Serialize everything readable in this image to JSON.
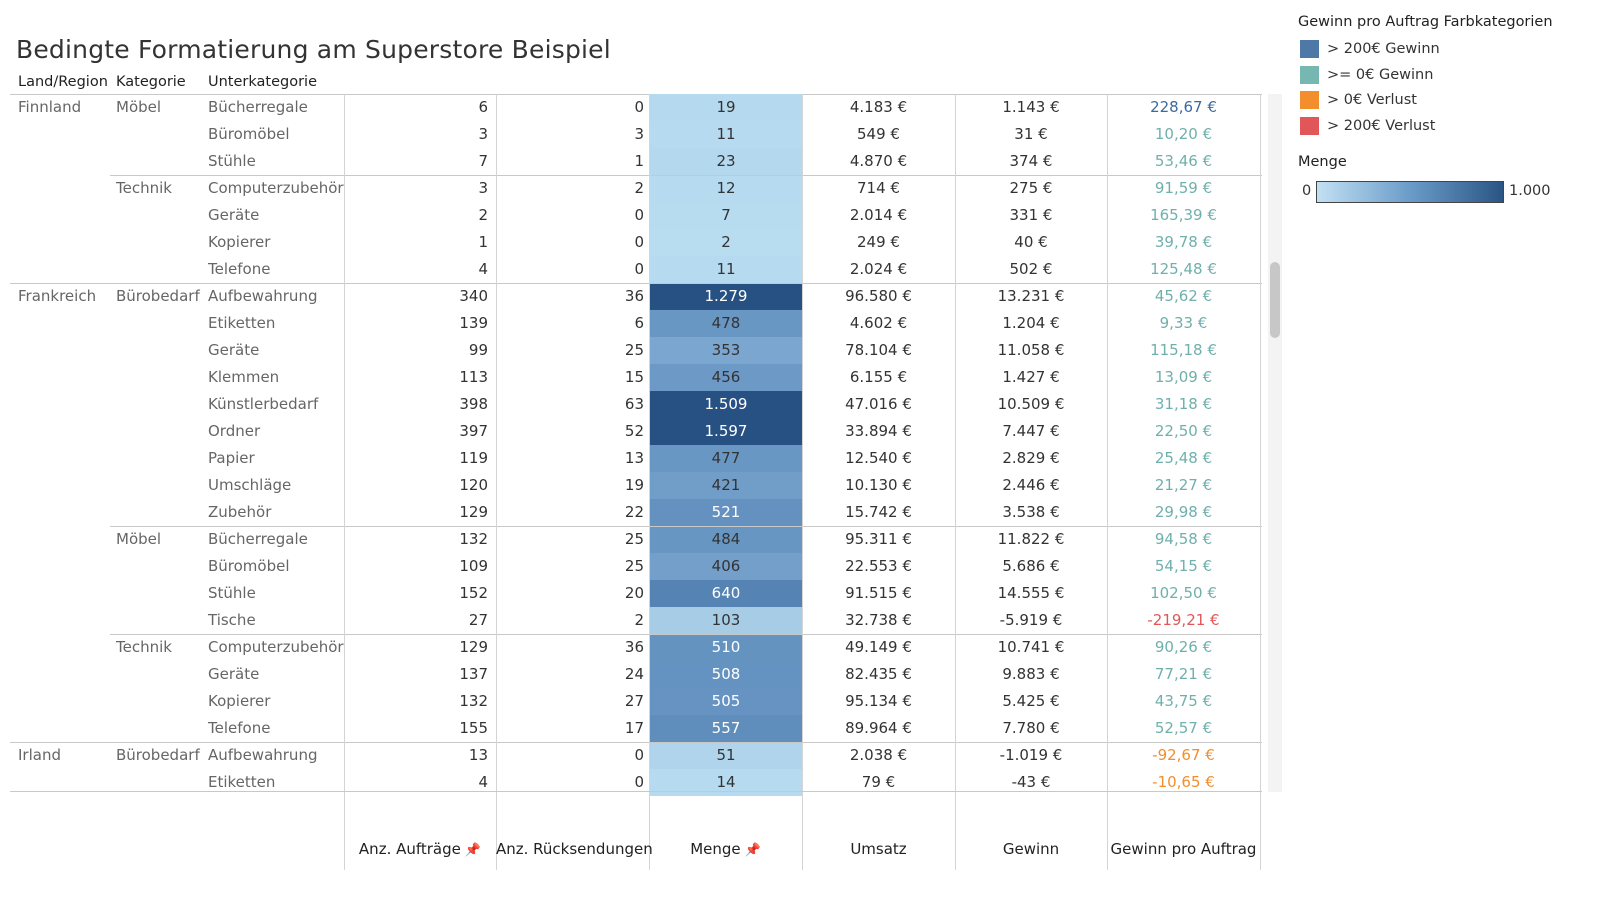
{
  "title": "Bedingte Formatierung am Superstore Beispiel",
  "row_headers": [
    "Land/Region",
    "Kategorie",
    "Unterkategorie"
  ],
  "column_footers": [
    "Anz. Aufträge",
    "Anz. Rücksendungen",
    "Menge",
    "Umsatz",
    "Gewinn",
    "Gewinn pro Auftrag"
  ],
  "colors": {
    "profit_high": "#4e79a7",
    "profit_pos": "#76b7b2",
    "loss_low": "#f28e2b",
    "loss_high": "#e15759",
    "text_high": "#3b6a9e",
    "text_pos": "#6fb0ac",
    "text_loss_low": "#f28e2b",
    "text_loss_high": "#e15759"
  },
  "legend": {
    "title": "Gewinn pro Auftrag Farbkategorien",
    "items": [
      {
        "label": "> 200€ Gewinn",
        "color": "#4e79a7"
      },
      {
        "label": ">= 0€ Gewinn",
        "color": "#76b7b2"
      },
      {
        "label": "> 0€ Verlust",
        "color": "#f28e2b"
      },
      {
        "label": "> 200€ Verlust",
        "color": "#e15759"
      }
    ],
    "menge_title": "Menge",
    "menge_min": "0",
    "menge_max": "1.000"
  },
  "groups": [
    {
      "region": "Finnland",
      "categories": [
        {
          "name": "Möbel",
          "rows": [
            {
              "sub": "Bücherregale",
              "orders": "6",
              "returns": "0",
              "qty": 19,
              "qty_label": "19",
              "sales": "4.183 €",
              "profit": "1.143 €",
              "ppo": "228,67 €",
              "cls": "high"
            },
            {
              "sub": "Büromöbel",
              "orders": "3",
              "returns": "3",
              "qty": 11,
              "qty_label": "11",
              "sales": "549 €",
              "profit": "31 €",
              "ppo": "10,20 €",
              "cls": "pos"
            },
            {
              "sub": "Stühle",
              "orders": "7",
              "returns": "1",
              "qty": 23,
              "qty_label": "23",
              "sales": "4.870 €",
              "profit": "374 €",
              "ppo": "53,46 €",
              "cls": "pos"
            }
          ]
        },
        {
          "name": "Technik",
          "rows": [
            {
              "sub": "Computerzubehör",
              "orders": "3",
              "returns": "2",
              "qty": 12,
              "qty_label": "12",
              "sales": "714 €",
              "profit": "275 €",
              "ppo": "91,59 €",
              "cls": "pos"
            },
            {
              "sub": "Geräte",
              "orders": "2",
              "returns": "0",
              "qty": 7,
              "qty_label": "7",
              "sales": "2.014 €",
              "profit": "331 €",
              "ppo": "165,39 €",
              "cls": "pos"
            },
            {
              "sub": "Kopierer",
              "orders": "1",
              "returns": "0",
              "qty": 2,
              "qty_label": "2",
              "sales": "249 €",
              "profit": "40 €",
              "ppo": "39,78 €",
              "cls": "pos"
            },
            {
              "sub": "Telefone",
              "orders": "4",
              "returns": "0",
              "qty": 11,
              "qty_label": "11",
              "sales": "2.024 €",
              "profit": "502 €",
              "ppo": "125,48 €",
              "cls": "pos"
            }
          ]
        }
      ]
    },
    {
      "region": "Frankreich",
      "categories": [
        {
          "name": "Bürobedarf",
          "rows": [
            {
              "sub": "Aufbewahrung",
              "orders": "340",
              "returns": "36",
              "qty": 1279,
              "qty_label": "1.279",
              "sales": "96.580 €",
              "profit": "13.231 €",
              "ppo": "45,62 €",
              "cls": "pos"
            },
            {
              "sub": "Etiketten",
              "orders": "139",
              "returns": "6",
              "qty": 478,
              "qty_label": "478",
              "sales": "4.602 €",
              "profit": "1.204 €",
              "ppo": "9,33 €",
              "cls": "pos"
            },
            {
              "sub": "Geräte",
              "orders": "99",
              "returns": "25",
              "qty": 353,
              "qty_label": "353",
              "sales": "78.104 €",
              "profit": "11.058 €",
              "ppo": "115,18 €",
              "cls": "pos"
            },
            {
              "sub": "Klemmen",
              "orders": "113",
              "returns": "15",
              "qty": 456,
              "qty_label": "456",
              "sales": "6.155 €",
              "profit": "1.427 €",
              "ppo": "13,09 €",
              "cls": "pos"
            },
            {
              "sub": "Künstlerbedarf",
              "orders": "398",
              "returns": "63",
              "qty": 1509,
              "qty_label": "1.509",
              "sales": "47.016 €",
              "profit": "10.509 €",
              "ppo": "31,18 €",
              "cls": "pos"
            },
            {
              "sub": "Ordner",
              "orders": "397",
              "returns": "52",
              "qty": 1597,
              "qty_label": "1.597",
              "sales": "33.894 €",
              "profit": "7.447 €",
              "ppo": "22,50 €",
              "cls": "pos"
            },
            {
              "sub": "Papier",
              "orders": "119",
              "returns": "13",
              "qty": 477,
              "qty_label": "477",
              "sales": "12.540 €",
              "profit": "2.829 €",
              "ppo": "25,48 €",
              "cls": "pos"
            },
            {
              "sub": "Umschläge",
              "orders": "120",
              "returns": "19",
              "qty": 421,
              "qty_label": "421",
              "sales": "10.130 €",
              "profit": "2.446 €",
              "ppo": "21,27 €",
              "cls": "pos"
            },
            {
              "sub": "Zubehör",
              "orders": "129",
              "returns": "22",
              "qty": 521,
              "qty_label": "521",
              "sales": "15.742 €",
              "profit": "3.538 €",
              "ppo": "29,98 €",
              "cls": "pos"
            }
          ]
        },
        {
          "name": "Möbel",
          "rows": [
            {
              "sub": "Bücherregale",
              "orders": "132",
              "returns": "25",
              "qty": 484,
              "qty_label": "484",
              "sales": "95.311 €",
              "profit": "11.822 €",
              "ppo": "94,58 €",
              "cls": "pos"
            },
            {
              "sub": "Büromöbel",
              "orders": "109",
              "returns": "25",
              "qty": 406,
              "qty_label": "406",
              "sales": "22.553 €",
              "profit": "5.686 €",
              "ppo": "54,15 €",
              "cls": "pos"
            },
            {
              "sub": "Stühle",
              "orders": "152",
              "returns": "20",
              "qty": 640,
              "qty_label": "640",
              "sales": "91.515 €",
              "profit": "14.555 €",
              "ppo": "102,50 €",
              "cls": "pos"
            },
            {
              "sub": "Tische",
              "orders": "27",
              "returns": "2",
              "qty": 103,
              "qty_label": "103",
              "sales": "32.738 €",
              "profit": "-5.919 €",
              "ppo": "-219,21 €",
              "cls": "losshigh"
            }
          ]
        },
        {
          "name": "Technik",
          "rows": [
            {
              "sub": "Computerzubehör",
              "orders": "129",
              "returns": "36",
              "qty": 510,
              "qty_label": "510",
              "sales": "49.149 €",
              "profit": "10.741 €",
              "ppo": "90,26 €",
              "cls": "pos"
            },
            {
              "sub": "Geräte",
              "orders": "137",
              "returns": "24",
              "qty": 508,
              "qty_label": "508",
              "sales": "82.435 €",
              "profit": "9.883 €",
              "ppo": "77,21 €",
              "cls": "pos"
            },
            {
              "sub": "Kopierer",
              "orders": "132",
              "returns": "27",
              "qty": 505,
              "qty_label": "505",
              "sales": "95.134 €",
              "profit": "5.425 €",
              "ppo": "43,75 €",
              "cls": "pos"
            },
            {
              "sub": "Telefone",
              "orders": "155",
              "returns": "17",
              "qty": 557,
              "qty_label": "557",
              "sales": "89.964 €",
              "profit": "7.780 €",
              "ppo": "52,57 €",
              "cls": "pos"
            }
          ]
        }
      ]
    },
    {
      "region": "Irland",
      "categories": [
        {
          "name": "Bürobedarf",
          "rows": [
            {
              "sub": "Aufbewahrung",
              "orders": "13",
              "returns": "0",
              "qty": 51,
              "qty_label": "51",
              "sales": "2.038 €",
              "profit": "-1.019 €",
              "ppo": "-92,67 €",
              "cls": "losslow"
            },
            {
              "sub": "Etiketten",
              "orders": "4",
              "returns": "0",
              "qty": 14,
              "qty_label": "14",
              "sales": "79 €",
              "profit": "-43 €",
              "ppo": "-10,65 €",
              "cls": "losslow"
            }
          ]
        }
      ]
    }
  ]
}
